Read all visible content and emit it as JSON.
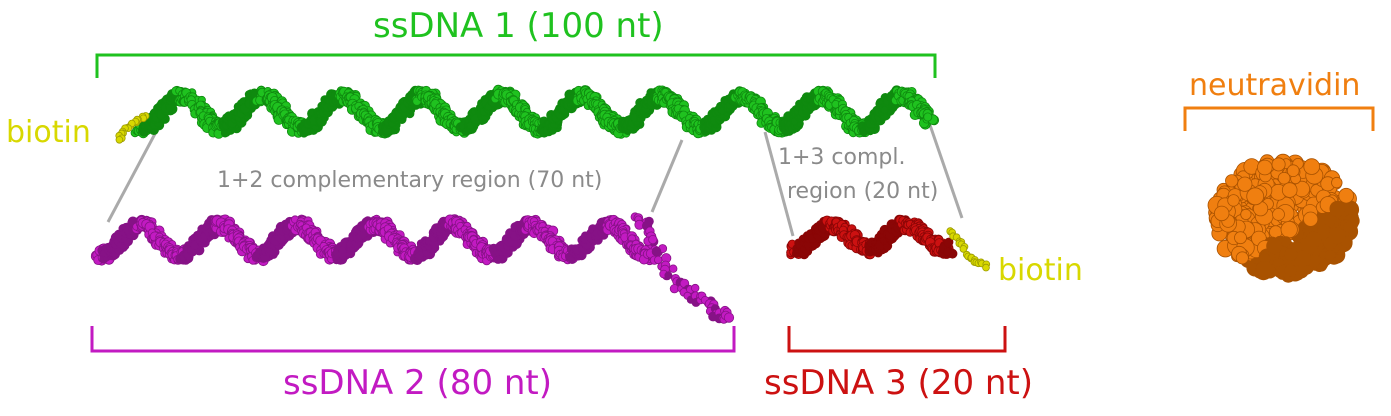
{
  "colors": {
    "ssdna1": "#1fc21f",
    "ssdna1_dark": "#0f8a0f",
    "ssdna2": "#c21ac2",
    "ssdna2_dark": "#861286",
    "ssdna3": "#cc1111",
    "ssdna3_dark": "#8a0606",
    "biotin": "#d8d800",
    "biotin_dark": "#9c9c00",
    "neutravidin": "#f07f10",
    "neutravidin_dark": "#a95200",
    "connector": "#aaaaaa",
    "annotation_text": "#8a8a8a"
  },
  "labels": {
    "ssdna1": "ssDNA 1 (100 nt)",
    "ssdna2": "ssDNA 2 (80 nt)",
    "ssdna3": "ssDNA 3 (20 nt)",
    "neutravidin": "neutravidin",
    "biotin_left": "biotin",
    "biotin_right": "biotin",
    "region_12": "1+2 complementary region (70 nt)",
    "region_13_line1": "1+3 compl.",
    "region_13_line2": "region (20 nt)"
  }
}
